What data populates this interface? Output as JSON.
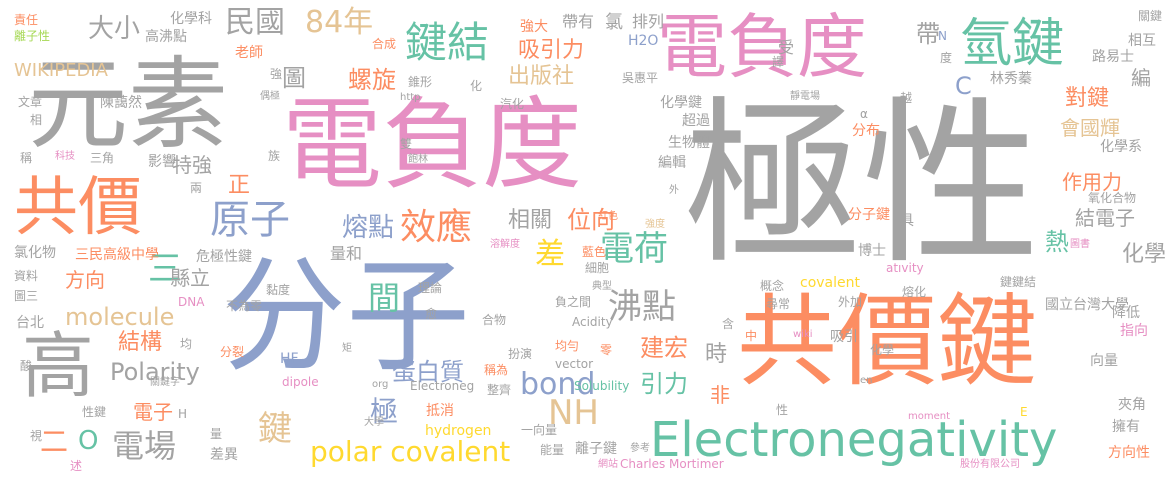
{
  "colors": {
    "gray": "#a3a3a3",
    "pink": "#e68fc3",
    "orange": "#fc8d62",
    "green": "#66c2a5",
    "blue": "#8da0cb",
    "lime": "#a6d854",
    "tan": "#e5c494",
    "yellow": "#ffd92f"
  },
  "words": [
    {
      "text": "極性",
      "c": "gray"
    },
    {
      "text": "電負度",
      "c": "pink"
    },
    {
      "text": "電負度",
      "c": "pink"
    },
    {
      "text": "元素",
      "c": "gray"
    },
    {
      "text": "共價鍵",
      "c": "orange"
    },
    {
      "text": "分子",
      "c": "blue"
    },
    {
      "text": "共價",
      "c": "orange"
    },
    {
      "text": "高",
      "c": "gray"
    },
    {
      "text": "氫鍵",
      "c": "green"
    },
    {
      "text": "Electronegativity",
      "c": "green"
    },
    {
      "text": "原子",
      "c": "blue"
    },
    {
      "text": "鍵結",
      "c": "green"
    },
    {
      "text": "84年",
      "c": "tan"
    },
    {
      "text": "民國",
      "c": "gray"
    },
    {
      "text": "大小",
      "c": "gray"
    },
    {
      "text": "效應",
      "c": "orange"
    },
    {
      "text": "電荷",
      "c": "green"
    },
    {
      "text": "bond",
      "c": "blue"
    },
    {
      "text": "NH",
      "c": "tan"
    },
    {
      "text": "沸點",
      "c": "gray"
    },
    {
      "text": "polar covalent",
      "c": "yellow"
    },
    {
      "text": "電場",
      "c": "gray"
    },
    {
      "text": "molecule",
      "c": "tan"
    },
    {
      "text": "Polarity",
      "c": "gray"
    },
    {
      "text": "蛋白質",
      "c": "blue"
    },
    {
      "text": "間",
      "c": "green"
    },
    {
      "text": "差",
      "c": "yellow"
    },
    {
      "text": "鍵",
      "c": "tan"
    },
    {
      "text": "極",
      "c": "blue"
    },
    {
      "text": "二",
      "c": "orange"
    },
    {
      "text": "O",
      "c": "green"
    },
    {
      "text": "三",
      "c": "green"
    },
    {
      "text": "圖",
      "c": "gray"
    },
    {
      "text": "WIKIPEDIA",
      "c": "tan"
    },
    {
      "text": "螺旋",
      "c": "orange"
    },
    {
      "text": "出版社",
      "c": "tan"
    },
    {
      "text": "吸引力",
      "c": "orange"
    },
    {
      "text": "熔點",
      "c": "blue"
    },
    {
      "text": "位向",
      "c": "orange"
    },
    {
      "text": "結構",
      "c": "orange"
    },
    {
      "text": "方向",
      "c": "orange"
    },
    {
      "text": "特強",
      "c": "gray"
    },
    {
      "text": "引力",
      "c": "green"
    },
    {
      "text": "建宏",
      "c": "orange"
    },
    {
      "text": "電子",
      "c": "orange"
    },
    {
      "text": "相關",
      "c": "gray"
    },
    {
      "text": "縣立",
      "c": "gray"
    },
    {
      "text": "正",
      "c": "orange"
    },
    {
      "text": "帶",
      "c": "gray"
    },
    {
      "text": "C",
      "c": "blue"
    },
    {
      "text": "對鍵",
      "c": "orange"
    },
    {
      "text": "會國輝",
      "c": "tan"
    },
    {
      "text": "作用力",
      "c": "orange"
    },
    {
      "text": "結電子",
      "c": "gray"
    },
    {
      "text": "化學",
      "c": "gray"
    },
    {
      "text": "熱",
      "c": "green"
    },
    {
      "text": "時",
      "c": "gray"
    },
    {
      "text": "非",
      "c": "orange"
    },
    {
      "text": "編",
      "c": "gray"
    },
    {
      "text": "量和",
      "c": "gray"
    },
    {
      "text": "責任",
      "c": "orange"
    },
    {
      "text": "離子性",
      "c": "lime"
    },
    {
      "text": "化學科",
      "c": "gray"
    },
    {
      "text": "高沸點",
      "c": "gray"
    },
    {
      "text": "老師",
      "c": "orange"
    },
    {
      "text": "強",
      "c": "gray"
    },
    {
      "text": "帶有",
      "c": "gray"
    },
    {
      "text": "氯",
      "c": "gray"
    },
    {
      "text": "排列",
      "c": "gray"
    },
    {
      "text": "H2O",
      "c": "blue"
    },
    {
      "text": "強大",
      "c": "orange"
    },
    {
      "text": "合成",
      "c": "orange"
    },
    {
      "text": "錐形",
      "c": "gray"
    },
    {
      "text": "受",
      "c": "gray"
    },
    {
      "text": "吳惠平",
      "c": "gray"
    },
    {
      "text": "譯",
      "c": "gray"
    },
    {
      "text": "關鍵",
      "c": "gray"
    },
    {
      "text": "相互",
      "c": "gray"
    },
    {
      "text": "路易士",
      "c": "gray"
    },
    {
      "text": "N",
      "c": "blue"
    },
    {
      "text": "度",
      "c": "gray"
    },
    {
      "text": "林秀蓁",
      "c": "gray"
    },
    {
      "text": "文章",
      "c": "gray"
    },
    {
      "text": "陳藹然",
      "c": "gray"
    },
    {
      "text": "相",
      "c": "gray"
    },
    {
      "text": "偶極",
      "c": "gray"
    },
    {
      "text": "http",
      "c": "gray"
    },
    {
      "text": "化",
      "c": "gray"
    },
    {
      "text": "汽化",
      "c": "gray"
    },
    {
      "text": "化學鍵",
      "c": "gray"
    },
    {
      "text": "靜電場",
      "c": "gray"
    },
    {
      "text": "越",
      "c": "gray"
    },
    {
      "text": "超過",
      "c": "gray"
    },
    {
      "text": "α",
      "c": "gray"
    },
    {
      "text": "分布",
      "c": "orange"
    },
    {
      "text": "化學系",
      "c": "gray"
    },
    {
      "text": "稱",
      "c": "gray"
    },
    {
      "text": "科技",
      "c": "pink"
    },
    {
      "text": "三角",
      "c": "gray"
    },
    {
      "text": "影響",
      "c": "gray"
    },
    {
      "text": "族",
      "c": "gray"
    },
    {
      "text": "雙",
      "c": "gray"
    },
    {
      "text": "飽林",
      "c": "gray"
    },
    {
      "text": "生物體",
      "c": "gray"
    },
    {
      "text": "編輯",
      "c": "gray"
    },
    {
      "text": "兩",
      "c": "gray"
    },
    {
      "text": "外",
      "c": "gray"
    },
    {
      "text": "氧化合物",
      "c": "gray"
    },
    {
      "text": "分子鍵",
      "c": "orange"
    },
    {
      "text": "具",
      "c": "gray"
    },
    {
      "text": "紅色",
      "c": "orange"
    },
    {
      "text": "強度",
      "c": "tan"
    },
    {
      "text": "氯化物",
      "c": "gray"
    },
    {
      "text": "三民高級中學",
      "c": "orange"
    },
    {
      "text": "危極性鍵",
      "c": "gray"
    },
    {
      "text": "溶解度",
      "c": "pink"
    },
    {
      "text": "藍色",
      "c": "orange"
    },
    {
      "text": "博士",
      "c": "gray"
    },
    {
      "text": "圖書",
      "c": "pink"
    },
    {
      "text": "資料",
      "c": "gray"
    },
    {
      "text": "細胞",
      "c": "gray"
    },
    {
      "text": "atıvity",
      "c": "pink"
    },
    {
      "text": "圖三",
      "c": "gray"
    },
    {
      "text": "黏度",
      "c": "gray"
    },
    {
      "text": "不為零",
      "c": "gray"
    },
    {
      "text": "理論",
      "c": "gray"
    },
    {
      "text": "典型",
      "c": "gray"
    },
    {
      "text": "概念",
      "c": "gray"
    },
    {
      "text": "covalent",
      "c": "yellow"
    },
    {
      "text": "鍵鍵結",
      "c": "gray"
    },
    {
      "text": "DNA",
      "c": "pink"
    },
    {
      "text": "熔化",
      "c": "gray"
    },
    {
      "text": "國立台灣大學",
      "c": "gray"
    },
    {
      "text": "負之間",
      "c": "gray"
    },
    {
      "text": "尋常",
      "c": "gray"
    },
    {
      "text": "外加",
      "c": "gray"
    },
    {
      "text": "台北",
      "c": "gray"
    },
    {
      "text": "愈",
      "c": "gray"
    },
    {
      "text": "合物",
      "c": "gray"
    },
    {
      "text": "Acidity",
      "c": "gray"
    },
    {
      "text": "含",
      "c": "gray"
    },
    {
      "text": "中",
      "c": "orange"
    },
    {
      "text": "wiki",
      "c": "pink"
    },
    {
      "text": "吸引",
      "c": "gray"
    },
    {
      "text": "降低",
      "c": "gray"
    },
    {
      "text": "指向",
      "c": "pink"
    },
    {
      "text": "酸",
      "c": "gray"
    },
    {
      "text": "均",
      "c": "gray"
    },
    {
      "text": "分裂",
      "c": "orange"
    },
    {
      "text": "矩",
      "c": "gray"
    },
    {
      "text": "均勻",
      "c": "orange"
    },
    {
      "text": "零",
      "c": "orange"
    },
    {
      "text": "扮演",
      "c": "gray"
    },
    {
      "text": "HF",
      "c": "blue"
    },
    {
      "text": "vector",
      "c": "gray"
    },
    {
      "text": "稱為",
      "c": "orange"
    },
    {
      "text": "向量",
      "c": "gray"
    },
    {
      "text": "化學",
      "c": "gray"
    },
    {
      "text": "dipole",
      "c": "pink"
    },
    {
      "text": "org",
      "c": "gray"
    },
    {
      "text": "Electroneg",
      "c": "gray"
    },
    {
      "text": "整齊",
      "c": "gray"
    },
    {
      "text": "Solubility",
      "c": "green"
    },
    {
      "text": "en",
      "c": "gray"
    },
    {
      "text": "關鍵字",
      "c": "gray"
    },
    {
      "text": "性鍵",
      "c": "gray"
    },
    {
      "text": "H",
      "c": "gray"
    },
    {
      "text": "抵消",
      "c": "orange"
    },
    {
      "text": "hydrogen",
      "c": "yellow"
    },
    {
      "text": "一向量",
      "c": "gray"
    },
    {
      "text": "性",
      "c": "gray"
    },
    {
      "text": "moment",
      "c": "pink"
    },
    {
      "text": "E",
      "c": "yellow"
    },
    {
      "text": "夾角",
      "c": "gray"
    },
    {
      "text": "離子鍵",
      "c": "gray"
    },
    {
      "text": "大學",
      "c": "gray"
    },
    {
      "text": "量",
      "c": "gray"
    },
    {
      "text": "能量",
      "c": "gray"
    },
    {
      "text": "參考",
      "c": "gray"
    },
    {
      "text": "擁有",
      "c": "gray"
    },
    {
      "text": "視",
      "c": "gray"
    },
    {
      "text": "差異",
      "c": "gray"
    },
    {
      "text": "網站",
      "c": "pink"
    },
    {
      "text": "Charles Mortimer",
      "c": "pink"
    },
    {
      "text": "股份有限公司",
      "c": "pink"
    },
    {
      "text": "方向性",
      "c": "orange"
    },
    {
      "text": "述",
      "c": "pink"
    }
  ]
}
